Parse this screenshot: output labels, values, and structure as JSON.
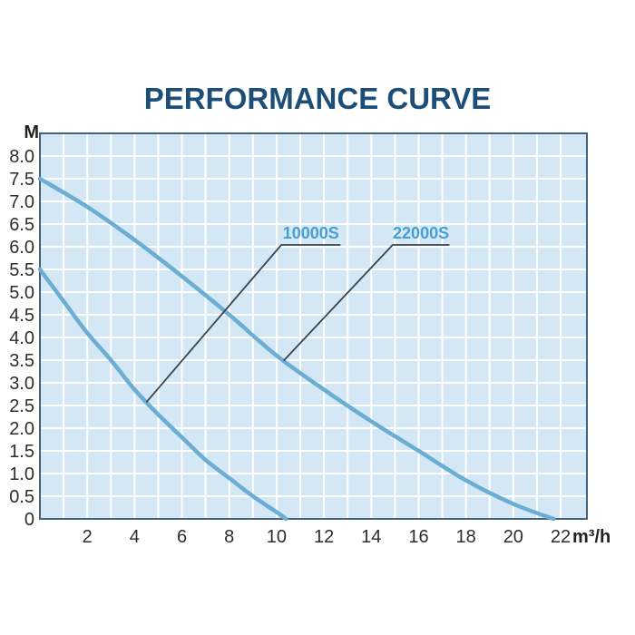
{
  "title": "PERFORMANCE CURVE",
  "colors": {
    "page_bg": "#ffffff",
    "title": "#1d4e78",
    "plot_bg": "#d4e7f4",
    "grid_line": "#ffffff",
    "plot_border": "#44617a",
    "curve": "#6cadd4",
    "series_label": "#45a0d5",
    "axis_text": "#2d2d2d",
    "leader_line": "#39444d"
  },
  "chart_data": {
    "type": "line",
    "title": "PERFORMANCE CURVE",
    "x_unit": "m³/h",
    "y_unit": "M",
    "xlim": [
      0,
      23
    ],
    "ylim": [
      0,
      8.5
    ],
    "grid": {
      "visible": true,
      "x_step": 1,
      "y_step": 0.5
    },
    "legend_position": "inline-labels",
    "x_ticks": [
      {
        "value": 2,
        "label": "2"
      },
      {
        "value": 4,
        "label": "4"
      },
      {
        "value": 6,
        "label": "6"
      },
      {
        "value": 8,
        "label": "8"
      },
      {
        "value": 10,
        "label": "10"
      },
      {
        "value": 12,
        "label": "12"
      },
      {
        "value": 14,
        "label": "14"
      },
      {
        "value": 16,
        "label": "16"
      },
      {
        "value": 18,
        "label": "18"
      },
      {
        "value": 20,
        "label": "20"
      },
      {
        "value": 22,
        "label": "22"
      }
    ],
    "y_ticks": [
      {
        "value": 8,
        "label": "8.0"
      },
      {
        "value": 7.5,
        "label": "7.5"
      },
      {
        "value": 7,
        "label": "7.0"
      },
      {
        "value": 6.5,
        "label": "6.5"
      },
      {
        "value": 6,
        "label": "6.0"
      },
      {
        "value": 5.5,
        "label": "5.5"
      },
      {
        "value": 5,
        "label": "5.0"
      },
      {
        "value": 4.5,
        "label": "4.5"
      },
      {
        "value": 4,
        "label": "4.0"
      },
      {
        "value": 3.5,
        "label": "3.5"
      },
      {
        "value": 3,
        "label": "3.0"
      },
      {
        "value": 2.5,
        "label": "2.5"
      },
      {
        "value": 2,
        "label": "2.0"
      },
      {
        "value": 1.5,
        "label": "1.5"
      },
      {
        "value": 1,
        "label": "1.0"
      },
      {
        "value": 0.5,
        "label": "0.5"
      },
      {
        "value": 0,
        "label": "0"
      }
    ],
    "series": [
      {
        "name": "10000S",
        "points": [
          [
            0,
            5.5
          ],
          [
            1,
            4.8
          ],
          [
            2,
            4.1
          ],
          [
            3,
            3.5
          ],
          [
            4,
            2.85
          ],
          [
            5,
            2.3
          ],
          [
            6,
            1.8
          ],
          [
            7,
            1.3
          ],
          [
            8,
            0.9
          ],
          [
            9,
            0.5
          ],
          [
            10,
            0.15
          ],
          [
            10.4,
            0
          ]
        ],
        "leader": {
          "attach_x": 4.5,
          "elbow": [
            10.2,
            6.04
          ],
          "end_x": 12.7
        },
        "label_pos": {
          "x": 11.45,
          "y": 6.18
        }
      },
      {
        "name": "22000S",
        "points": [
          [
            0,
            7.5
          ],
          [
            2,
            6.88
          ],
          [
            4,
            6.15
          ],
          [
            6,
            5.35
          ],
          [
            8,
            4.5
          ],
          [
            10,
            3.6
          ],
          [
            12,
            2.85
          ],
          [
            14,
            2.15
          ],
          [
            16,
            1.5
          ],
          [
            18,
            0.85
          ],
          [
            20,
            0.33
          ],
          [
            21.7,
            0
          ]
        ],
        "leader": {
          "attach_x": 10.3,
          "elbow": [
            14.9,
            6.04
          ],
          "end_x": 17.3
        },
        "label_pos": {
          "x": 16.1,
          "y": 6.18
        }
      }
    ]
  }
}
